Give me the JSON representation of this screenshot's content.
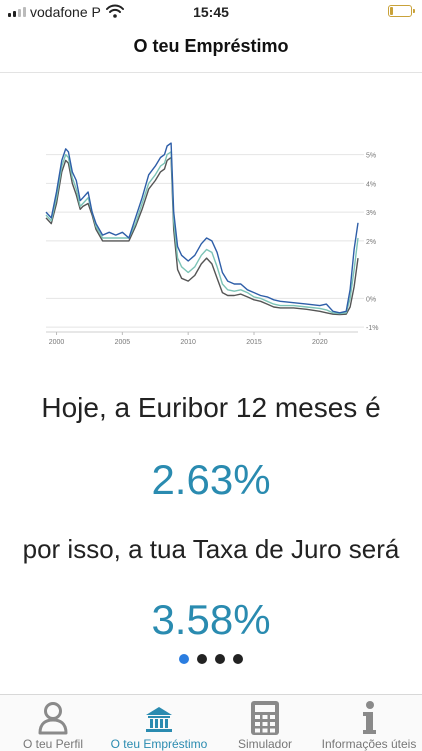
{
  "status_bar": {
    "carrier": "vodafone P",
    "time": "15:45"
  },
  "header": {
    "title": "O teu Empréstimo"
  },
  "chart_data": {
    "type": "line",
    "x_ticks": [
      "2000",
      "2005",
      "2010",
      "2015",
      "2020"
    ],
    "y_ticks": [
      "5%",
      "4%",
      "3%",
      "2%",
      "0%",
      "-1%"
    ],
    "xlim": [
      1999.2,
      2022.9
    ],
    "ylim": [
      -1.1,
      5.3
    ],
    "grid": true,
    "series": [
      {
        "color": "#2e5ea8",
        "points": [
          [
            1999.2,
            3.0
          ],
          [
            1999.6,
            2.8
          ],
          [
            2000.0,
            3.7
          ],
          [
            2000.4,
            4.8
          ],
          [
            2000.7,
            5.2
          ],
          [
            2000.9,
            5.1
          ],
          [
            2001.2,
            4.4
          ],
          [
            2001.5,
            4.1
          ],
          [
            2001.8,
            3.4
          ],
          [
            2002.0,
            3.5
          ],
          [
            2002.4,
            3.7
          ],
          [
            2002.7,
            3.0
          ],
          [
            2003.0,
            2.6
          ],
          [
            2003.5,
            2.2
          ],
          [
            2004.0,
            2.3
          ],
          [
            2004.5,
            2.2
          ],
          [
            2005.0,
            2.3
          ],
          [
            2005.5,
            2.1
          ],
          [
            2006.0,
            2.8
          ],
          [
            2006.5,
            3.5
          ],
          [
            2007.0,
            4.3
          ],
          [
            2007.5,
            4.6
          ],
          [
            2007.9,
            4.9
          ],
          [
            2008.2,
            5.0
          ],
          [
            2008.4,
            5.3
          ],
          [
            2008.7,
            5.4
          ],
          [
            2008.9,
            3.0
          ],
          [
            2009.2,
            1.8
          ],
          [
            2009.5,
            1.5
          ],
          [
            2010.0,
            1.3
          ],
          [
            2010.5,
            1.5
          ],
          [
            2011.0,
            1.9
          ],
          [
            2011.4,
            2.1
          ],
          [
            2011.8,
            2.0
          ],
          [
            2012.2,
            1.6
          ],
          [
            2012.6,
            0.9
          ],
          [
            2013.0,
            0.6
          ],
          [
            2013.5,
            0.5
          ],
          [
            2014.0,
            0.5
          ],
          [
            2014.5,
            0.3
          ],
          [
            2015.0,
            0.2
          ],
          [
            2015.5,
            0.1
          ],
          [
            2016.0,
            0.05
          ],
          [
            2016.5,
            -0.05
          ],
          [
            2017.0,
            -0.1
          ],
          [
            2018.0,
            -0.15
          ],
          [
            2019.0,
            -0.2
          ],
          [
            2020.0,
            -0.25
          ],
          [
            2020.5,
            -0.2
          ],
          [
            2021.0,
            -0.45
          ],
          [
            2021.5,
            -0.5
          ],
          [
            2022.0,
            -0.45
          ],
          [
            2022.3,
            0.3
          ],
          [
            2022.6,
            1.7
          ],
          [
            2022.9,
            2.63
          ]
        ]
      },
      {
        "color": "#7cc3b6",
        "points": [
          [
            1999.2,
            2.9
          ],
          [
            1999.6,
            2.7
          ],
          [
            2000.0,
            3.5
          ],
          [
            2000.4,
            4.6
          ],
          [
            2000.7,
            5.0
          ],
          [
            2000.9,
            4.9
          ],
          [
            2001.2,
            4.2
          ],
          [
            2001.5,
            3.8
          ],
          [
            2001.8,
            3.2
          ],
          [
            2002.0,
            3.3
          ],
          [
            2002.4,
            3.5
          ],
          [
            2002.7,
            3.0
          ],
          [
            2003.0,
            2.5
          ],
          [
            2003.5,
            2.1
          ],
          [
            2004.0,
            2.1
          ],
          [
            2004.5,
            2.1
          ],
          [
            2005.0,
            2.1
          ],
          [
            2005.5,
            2.1
          ],
          [
            2006.0,
            2.6
          ],
          [
            2006.5,
            3.3
          ],
          [
            2007.0,
            4.0
          ],
          [
            2007.5,
            4.3
          ],
          [
            2007.9,
            4.6
          ],
          [
            2008.2,
            4.7
          ],
          [
            2008.4,
            5.0
          ],
          [
            2008.7,
            5.1
          ],
          [
            2008.9,
            2.7
          ],
          [
            2009.2,
            1.4
          ],
          [
            2009.5,
            1.1
          ],
          [
            2010.0,
            0.9
          ],
          [
            2010.5,
            1.1
          ],
          [
            2011.0,
            1.5
          ],
          [
            2011.4,
            1.7
          ],
          [
            2011.8,
            1.6
          ],
          [
            2012.2,
            1.1
          ],
          [
            2012.6,
            0.5
          ],
          [
            2013.0,
            0.3
          ],
          [
            2013.5,
            0.25
          ],
          [
            2014.0,
            0.3
          ],
          [
            2014.5,
            0.2
          ],
          [
            2015.0,
            0.05
          ],
          [
            2015.5,
            0.0
          ],
          [
            2016.0,
            -0.1
          ],
          [
            2016.5,
            -0.2
          ],
          [
            2017.0,
            -0.25
          ],
          [
            2018.0,
            -0.25
          ],
          [
            2019.0,
            -0.3
          ],
          [
            2020.0,
            -0.35
          ],
          [
            2020.5,
            -0.4
          ],
          [
            2021.0,
            -0.5
          ],
          [
            2021.5,
            -0.53
          ],
          [
            2022.0,
            -0.5
          ],
          [
            2022.3,
            0.0
          ],
          [
            2022.6,
            1.0
          ],
          [
            2022.9,
            2.1
          ]
        ]
      },
      {
        "color": "#555555",
        "points": [
          [
            1999.2,
            2.8
          ],
          [
            1999.6,
            2.6
          ],
          [
            2000.0,
            3.3
          ],
          [
            2000.4,
            4.4
          ],
          [
            2000.7,
            4.8
          ],
          [
            2000.9,
            4.7
          ],
          [
            2001.2,
            4.0
          ],
          [
            2001.5,
            3.6
          ],
          [
            2001.8,
            3.1
          ],
          [
            2002.0,
            3.2
          ],
          [
            2002.4,
            3.3
          ],
          [
            2002.7,
            2.9
          ],
          [
            2003.0,
            2.4
          ],
          [
            2003.5,
            2.0
          ],
          [
            2004.0,
            2.0
          ],
          [
            2004.5,
            2.0
          ],
          [
            2005.0,
            2.0
          ],
          [
            2005.5,
            2.0
          ],
          [
            2006.0,
            2.5
          ],
          [
            2006.5,
            3.1
          ],
          [
            2007.0,
            3.8
          ],
          [
            2007.5,
            4.1
          ],
          [
            2007.9,
            4.4
          ],
          [
            2008.2,
            4.5
          ],
          [
            2008.4,
            4.8
          ],
          [
            2008.7,
            4.9
          ],
          [
            2008.9,
            2.4
          ],
          [
            2009.2,
            1.0
          ],
          [
            2009.5,
            0.7
          ],
          [
            2010.0,
            0.6
          ],
          [
            2010.5,
            0.8
          ],
          [
            2011.0,
            1.2
          ],
          [
            2011.4,
            1.4
          ],
          [
            2011.8,
            1.2
          ],
          [
            2012.2,
            0.7
          ],
          [
            2012.6,
            0.2
          ],
          [
            2013.0,
            0.1
          ],
          [
            2013.5,
            0.1
          ],
          [
            2014.0,
            0.15
          ],
          [
            2014.5,
            0.05
          ],
          [
            2015.0,
            -0.05
          ],
          [
            2015.5,
            -0.1
          ],
          [
            2016.0,
            -0.2
          ],
          [
            2016.5,
            -0.3
          ],
          [
            2017.0,
            -0.33
          ],
          [
            2018.0,
            -0.33
          ],
          [
            2019.0,
            -0.38
          ],
          [
            2020.0,
            -0.45
          ],
          [
            2020.5,
            -0.5
          ],
          [
            2021.0,
            -0.55
          ],
          [
            2021.5,
            -0.56
          ],
          [
            2022.0,
            -0.55
          ],
          [
            2022.3,
            -0.3
          ],
          [
            2022.6,
            0.4
          ],
          [
            2022.9,
            1.4
          ]
        ]
      }
    ]
  },
  "main": {
    "euribor_caption": "Hoje, a Euribor 12 meses é",
    "euribor_value": "2.63%",
    "rate_caption": "por isso, a tua Taxa de Juro será",
    "rate_value": "3.58%"
  },
  "pager": {
    "count": 4,
    "active": 0
  },
  "tabs": [
    {
      "label": "O teu Perfil",
      "icon": "person-icon"
    },
    {
      "label": "O teu Empréstimo",
      "icon": "bank-icon",
      "active": true
    },
    {
      "label": "Simulador",
      "icon": "calculator-icon"
    },
    {
      "label": "Informações úteis",
      "icon": "info-icon"
    }
  ],
  "colors": {
    "accent": "#2a8bb0",
    "tab_icon": "#8a8a8a",
    "dot_active": "#2b7de0"
  }
}
